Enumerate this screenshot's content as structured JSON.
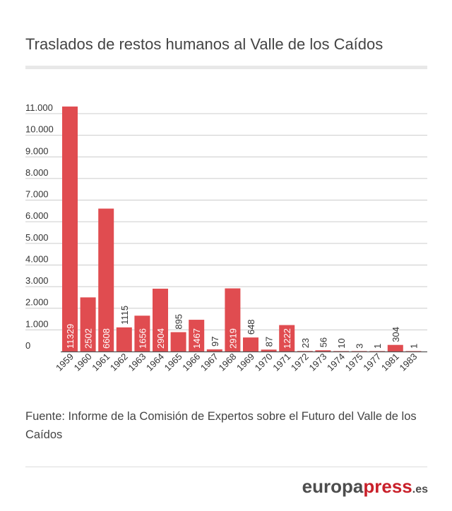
{
  "title": "Traslados de restos humanos al Valle de los Caídos",
  "source": "Fuente: Informe de la Comisión de Expertos sobre el Futuro del Valle de los Caídos",
  "brand": {
    "part1": "europa",
    "part2": "press",
    "part3": ".es"
  },
  "colors": {
    "bar": "#e04c50",
    "grid": "#cccccc",
    "axis": "#555555",
    "brand_red": "#c9202a"
  },
  "chart_data": {
    "type": "bar",
    "title": "Traslados de restos humanos al Valle de los Caídos",
    "xlabel": "",
    "ylabel": "",
    "ylim": [
      0,
      11000
    ],
    "yticks": [
      0,
      1000,
      2000,
      3000,
      4000,
      5000,
      6000,
      7000,
      8000,
      9000,
      10000,
      11000
    ],
    "ytick_labels": [
      "0",
      "1.000",
      "2.000",
      "3.000",
      "4.000",
      "5.000",
      "6.000",
      "7.000",
      "8.000",
      "9.000",
      "10.000",
      "11.000"
    ],
    "grid": true,
    "categories": [
      "1959",
      "1960",
      "1961",
      "1962",
      "1963",
      "1964",
      "1965",
      "1966",
      "1967",
      "1968",
      "1969",
      "1970",
      "1971",
      "1972",
      "1973",
      "1974",
      "1975",
      "1977",
      "1981",
      "1983"
    ],
    "values": [
      11329,
      2502,
      6608,
      1115,
      1656,
      2904,
      895,
      1467,
      97,
      2919,
      648,
      87,
      1222,
      23,
      56,
      10,
      3,
      1,
      304,
      1
    ],
    "data_labels": [
      "11329",
      "2502",
      "6608",
      "1115",
      "1656",
      "2904",
      "895",
      "1467",
      "97",
      "2919",
      "648",
      "87",
      "1222",
      "23",
      "56",
      "10",
      "3",
      "1",
      "304",
      "1"
    ]
  }
}
